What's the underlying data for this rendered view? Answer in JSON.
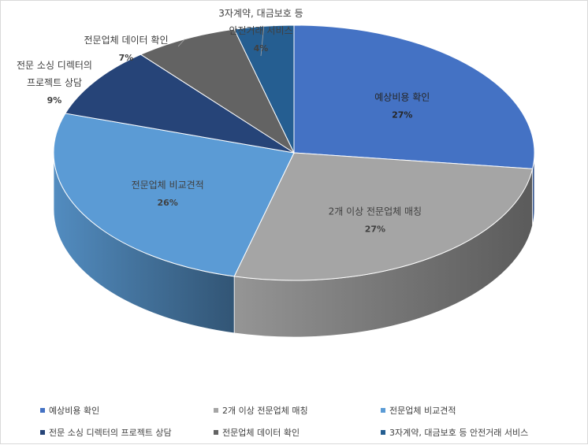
{
  "chart_data": {
    "type": "pie",
    "style": "3d",
    "categories": [
      "예상비용 확인",
      "2개 이상 전문업체 매칭",
      "전문업체 비교견적",
      "전문 소싱 디렉터의 프로젝트 상담",
      "전문업체 데이터 확인",
      "3자계약, 대금보호 등 안전거래 서비스"
    ],
    "label_lines": [
      [
        "예상비용 확인"
      ],
      [
        "2개 이상 전문업체 매칭"
      ],
      [
        "전문업체 비교견적"
      ],
      [
        "전문 소싱 디렉터의",
        "프로젝트 상담"
      ],
      [
        "전문업체 데이터 확인"
      ],
      [
        "3자계약, 대금보호 등",
        "안전거래 서비스"
      ]
    ],
    "values": [
      27,
      27,
      26,
      9,
      7,
      4
    ],
    "value_labels": [
      "27%",
      "27%",
      "26%",
      "9%",
      "7%",
      "4%"
    ],
    "colors": [
      "#4472c4",
      "#a5a5a5",
      "#5b9bd5",
      "#264478",
      "#636363",
      "#255e91"
    ],
    "legend_position": "bottom"
  }
}
